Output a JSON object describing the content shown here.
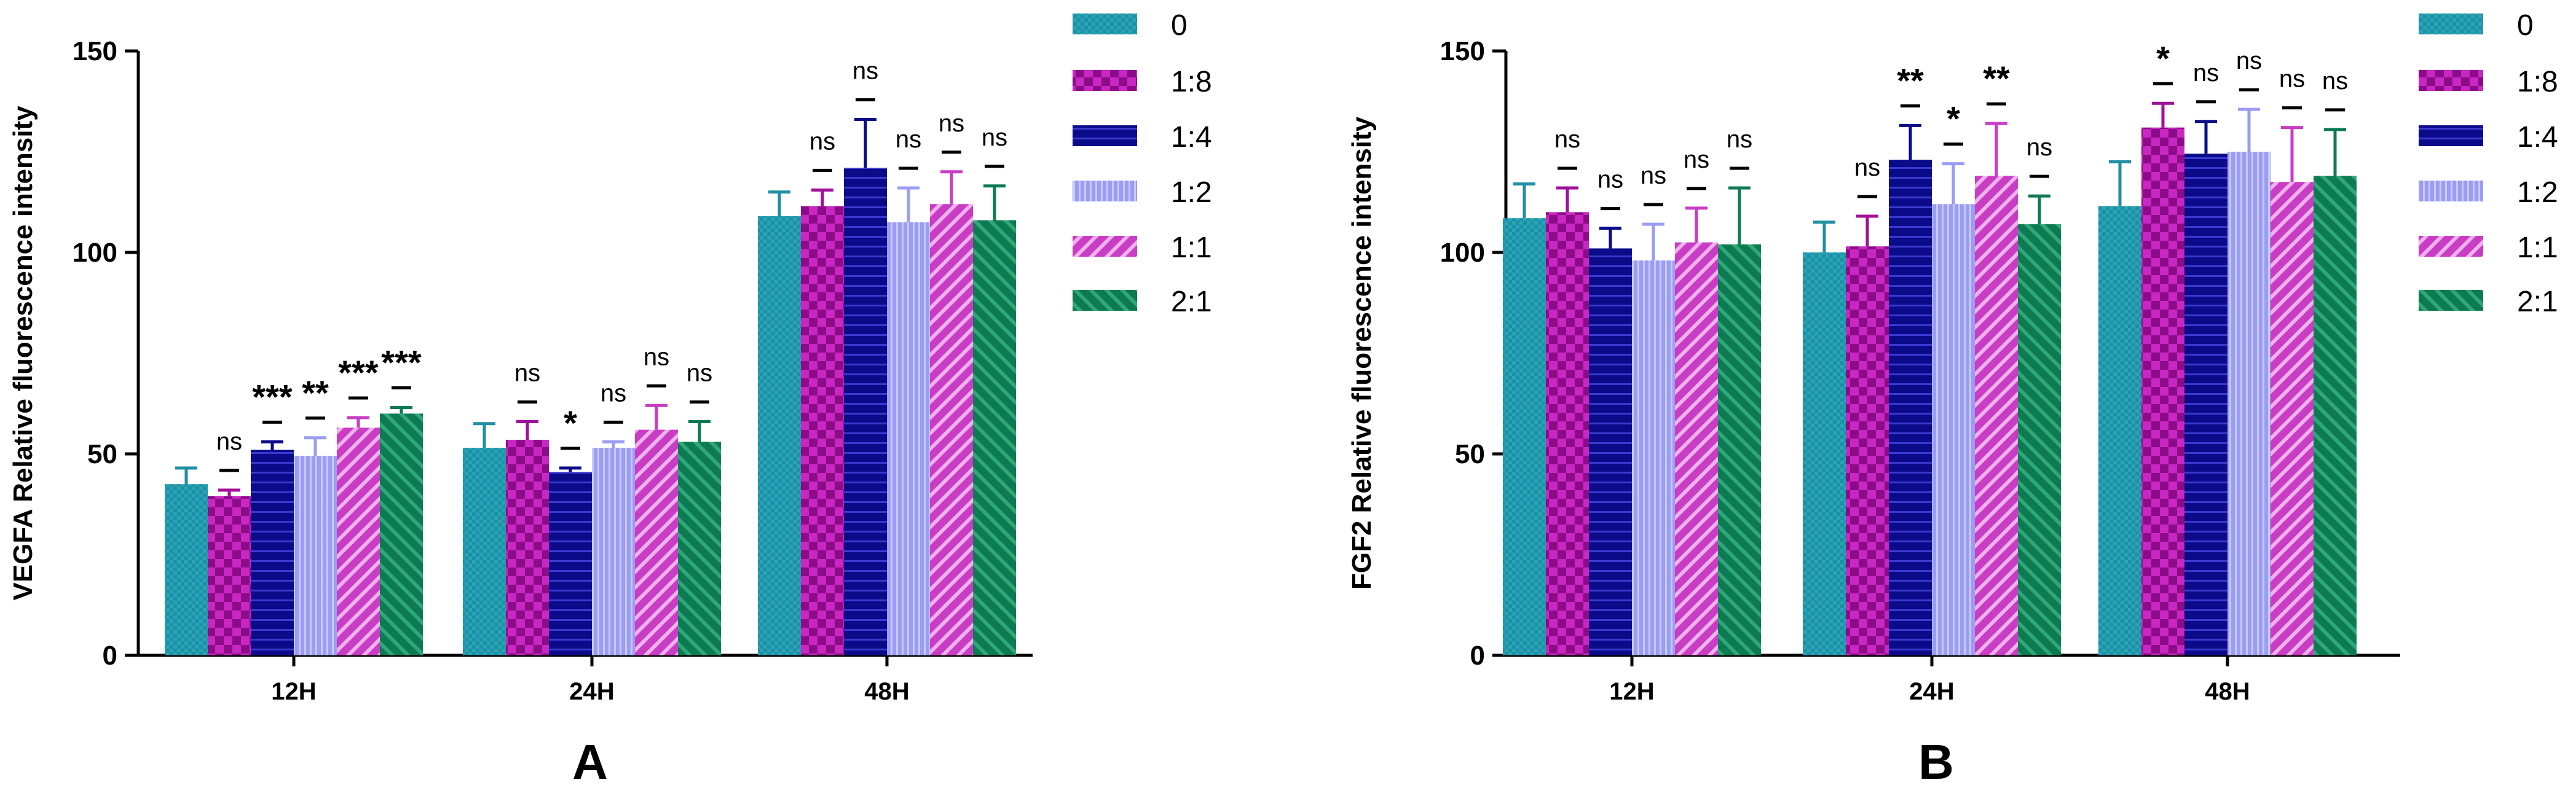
{
  "colors": {
    "0": "#1f8fa3",
    "1:8": "#a2109a",
    "1:4": "#0b0b8a",
    "1:2": "#9a9df2",
    "1:1": "#c93cc4",
    "2:1": "#0e7a52"
  },
  "chart_data": [
    {
      "panel": "A",
      "type": "bar",
      "ylabel": "VEGFA Relative fluorescence intensity",
      "ylim": [
        0,
        150
      ],
      "yticks": [
        0,
        50,
        100,
        150
      ],
      "categories": [
        "12H",
        "24H",
        "48H"
      ],
      "legend": [
        "0",
        "1:8",
        "1:4",
        "1:2",
        "1:1",
        "2:1"
      ],
      "series": [
        {
          "name": "0",
          "values": [
            42.5,
            51.5,
            109
          ],
          "errors": [
            4,
            6,
            6
          ],
          "sig": [
            "",
            "",
            ""
          ]
        },
        {
          "name": "1:8",
          "values": [
            39.5,
            53.5,
            111.5
          ],
          "errors": [
            1.5,
            4.5,
            4
          ],
          "sig": [
            "ns",
            "ns",
            "ns"
          ]
        },
        {
          "name": "1:4",
          "values": [
            51,
            45.5,
            121
          ],
          "errors": [
            2,
            1,
            12
          ],
          "sig": [
            "***",
            "*",
            "ns"
          ]
        },
        {
          "name": "1:2",
          "values": [
            49.5,
            51.5,
            107.5
          ],
          "errors": [
            4.5,
            1.5,
            8.5
          ],
          "sig": [
            "**",
            "ns",
            "ns"
          ]
        },
        {
          "name": "1:1",
          "values": [
            56.5,
            56,
            112
          ],
          "errors": [
            2.5,
            6,
            8
          ],
          "sig": [
            "***",
            "ns",
            "ns"
          ]
        },
        {
          "name": "2:1",
          "values": [
            60,
            53,
            108
          ],
          "errors": [
            1.5,
            5,
            8.5
          ],
          "sig": [
            "***",
            "ns",
            "ns"
          ]
        }
      ]
    },
    {
      "panel": "B",
      "type": "bar",
      "ylabel": "FGF2 Relative fluorescence intensity",
      "ylim": [
        0,
        150
      ],
      "yticks": [
        0,
        50,
        100,
        150
      ],
      "categories": [
        "12H",
        "24H",
        "48H"
      ],
      "legend": [
        "0",
        "1:8",
        "1:4",
        "1:2",
        "1:1",
        "2:1"
      ],
      "series": [
        {
          "name": "0",
          "values": [
            108.5,
            100,
            111.5
          ],
          "errors": [
            8.5,
            7.5,
            11
          ],
          "sig": [
            "",
            "",
            ""
          ]
        },
        {
          "name": "1:8",
          "values": [
            110,
            101.5,
            131
          ],
          "errors": [
            6,
            7.5,
            6
          ],
          "sig": [
            "ns",
            "ns",
            "*"
          ]
        },
        {
          "name": "1:4",
          "values": [
            101,
            123,
            124.5
          ],
          "errors": [
            5,
            8.5,
            8
          ],
          "sig": [
            "ns",
            "**",
            "ns"
          ]
        },
        {
          "name": "1:2",
          "values": [
            98,
            112,
            125
          ],
          "errors": [
            9,
            10,
            10.5
          ],
          "sig": [
            "ns",
            "*",
            "ns"
          ]
        },
        {
          "name": "1:1",
          "values": [
            102.5,
            119,
            117.5
          ],
          "errors": [
            8.5,
            13,
            13.5
          ],
          "sig": [
            "ns",
            "**",
            "ns"
          ]
        },
        {
          "name": "2:1",
          "values": [
            102,
            107,
            119
          ],
          "errors": [
            14,
            7,
            11.5
          ],
          "sig": [
            "ns",
            "ns",
            "ns"
          ]
        }
      ]
    }
  ]
}
